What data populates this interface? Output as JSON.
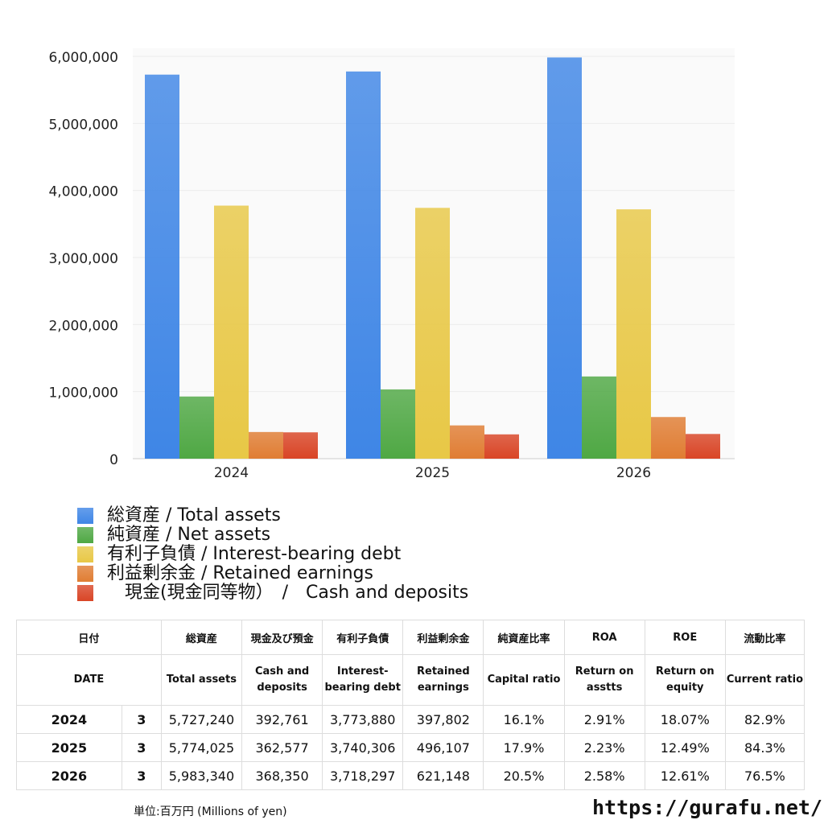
{
  "chart_data": {
    "type": "bar",
    "categories": [
      "2024",
      "2025",
      "2026"
    ],
    "ylim": [
      0,
      6000000
    ],
    "yticks": [
      0,
      1000000,
      2000000,
      3000000,
      4000000,
      5000000,
      6000000
    ],
    "ytick_labels": [
      "0",
      "1,000,000",
      "2,000,000",
      "3,000,000",
      "4,000,000",
      "5,000,000",
      "6,000,000"
    ],
    "grid": true,
    "legend_position": "bottom-left",
    "series": [
      {
        "name": "総資産 / Total assets",
        "color": "#3f86e6",
        "values": [
          5727240,
          5774025,
          5983340
        ]
      },
      {
        "name": "純資産 / Net assets",
        "color": "#4fa844",
        "values": [
          927000,
          1033000,
          1226000
        ]
      },
      {
        "name": "有利子負債 / Interest-bearing debt",
        "color": "#e8c846",
        "values": [
          3773880,
          3740306,
          3718297
        ]
      },
      {
        "name": "利益剰余金 / Retained earnings",
        "color": "#e07d33",
        "values": [
          397802,
          496107,
          621148
        ]
      },
      {
        "name": "　現金(現金同等物）　/　Cash and deposits",
        "color": "#d94526",
        "values": [
          392761,
          362577,
          368350
        ]
      }
    ]
  },
  "table": {
    "header_jp": [
      "日付",
      "",
      "総資産",
      "現金及び預金",
      "有利子負債",
      "利益剰余金",
      "純資産比率",
      "ROA",
      "ROE",
      "流動比率"
    ],
    "header_en": [
      "DATE",
      "",
      "Total assets",
      "Cash and deposits",
      "Interest-bearing debt",
      "Retained earnings",
      "Capital ratio",
      "Return on asstts",
      "Return on equity",
      "Current ratio"
    ],
    "rows": [
      [
        "2024",
        "3",
        "5,727,240",
        "392,761",
        "3,773,880",
        "397,802",
        "16.1%",
        "2.91%",
        "18.07%",
        "82.9%"
      ],
      [
        "2025",
        "3",
        "5,774,025",
        "362,577",
        "3,740,306",
        "496,107",
        "17.9%",
        "2.23%",
        "12.49%",
        "84.3%"
      ],
      [
        "2026",
        "3",
        "5,983,340",
        "368,350",
        "3,718,297",
        "621,148",
        "20.5%",
        "2.58%",
        "12.61%",
        "76.5%"
      ]
    ]
  },
  "footer": {
    "unit": "単位:百万円 (Millions of yen)",
    "site": "https://gurafu.net/"
  }
}
